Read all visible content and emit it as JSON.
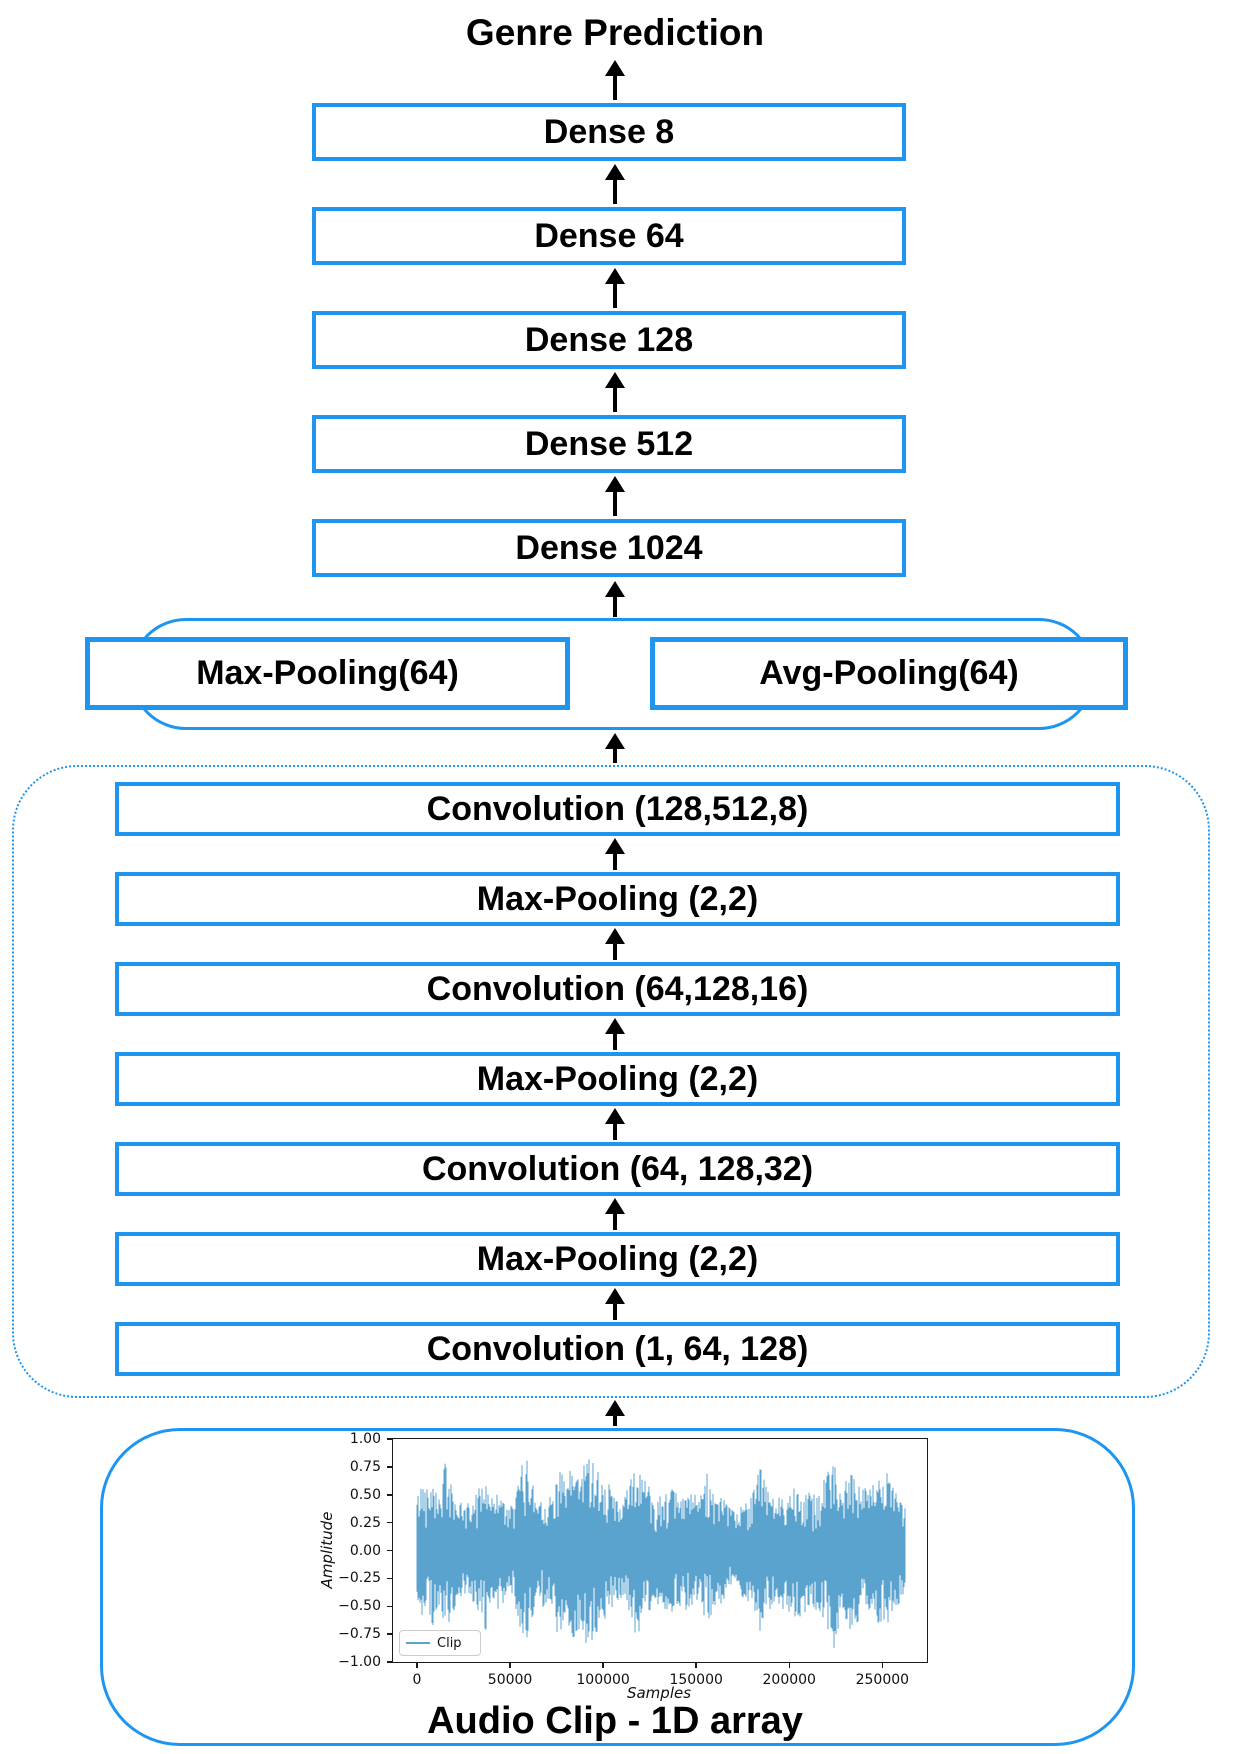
{
  "title": "Genre Prediction",
  "colors": {
    "box_border": "#1E96F0",
    "waveform": "#5BA3CF",
    "arrow": "#000000",
    "background": "#FFFFFF"
  },
  "dense_stack": {
    "items": [
      {
        "label": "Dense 8"
      },
      {
        "label": "Dense 64"
      },
      {
        "label": "Dense 128"
      },
      {
        "label": "Dense 512"
      },
      {
        "label": "Dense 1024"
      }
    ]
  },
  "pooling_group": {
    "max_label": "Max-Pooling(64)",
    "avg_label": "Avg-Pooling(64)"
  },
  "conv_stack": {
    "items": [
      {
        "label": "Convolution (128,512,8)"
      },
      {
        "label": "Max-Pooling (2,2)"
      },
      {
        "label": "Convolution (64,128,16)"
      },
      {
        "label": "Max-Pooling (2,2)"
      },
      {
        "label": "Convolution (64, 128,32)"
      },
      {
        "label": "Max-Pooling (2,2)"
      },
      {
        "label": "Convolution (1, 64, 128)"
      }
    ]
  },
  "input_group": {
    "caption": "Audio Clip - 1D array"
  },
  "chart_data": {
    "type": "line",
    "title": "",
    "xlabel": "Samples",
    "ylabel": "Amplitude",
    "legend_label": "Clip",
    "legend_position": "lower left",
    "series_color": "#5BA3CF",
    "xlim": [
      -12900,
      274000
    ],
    "ylim": [
      -1,
      1
    ],
    "xticks": [
      0,
      50000,
      100000,
      150000,
      200000,
      250000
    ],
    "xtick_labels": [
      "0",
      "50000",
      "100000",
      "150000",
      "200000",
      "250000"
    ],
    "yticks": [
      1.0,
      0.75,
      0.5,
      0.25,
      0.0,
      -0.25,
      -0.5,
      -0.75,
      -1.0
    ],
    "ytick_labels": [
      "1.00",
      "0.75",
      "0.50",
      "0.25",
      "0.00",
      "−0.25",
      "−0.50",
      "−0.75",
      "−1.00"
    ],
    "grid": false,
    "end_sample": 262000,
    "amplitude_envelope": [
      [
        0,
        0.5
      ],
      [
        3000,
        0.62
      ],
      [
        6000,
        0.58
      ],
      [
        9000,
        0.75
      ],
      [
        12000,
        0.5
      ],
      [
        15000,
        0.8
      ],
      [
        18000,
        0.62
      ],
      [
        22000,
        0.45
      ],
      [
        26000,
        0.4
      ],
      [
        30000,
        0.48
      ],
      [
        34000,
        0.6
      ],
      [
        37000,
        0.72
      ],
      [
        40000,
        0.48
      ],
      [
        44000,
        0.62
      ],
      [
        48000,
        0.38
      ],
      [
        52000,
        0.42
      ],
      [
        56000,
        0.78
      ],
      [
        60000,
        0.83
      ],
      [
        64000,
        0.5
      ],
      [
        68000,
        0.52
      ],
      [
        72000,
        0.48
      ],
      [
        76000,
        0.8
      ],
      [
        80000,
        0.58
      ],
      [
        84000,
        0.83
      ],
      [
        88000,
        0.68
      ],
      [
        92000,
        0.95
      ],
      [
        96000,
        0.78
      ],
      [
        100000,
        0.65
      ],
      [
        104000,
        0.58
      ],
      [
        108000,
        0.45
      ],
      [
        112000,
        0.5
      ],
      [
        116000,
        0.74
      ],
      [
        120000,
        0.73
      ],
      [
        124000,
        0.62
      ],
      [
        128000,
        0.48
      ],
      [
        132000,
        0.52
      ],
      [
        136000,
        0.57
      ],
      [
        140000,
        0.5
      ],
      [
        144000,
        0.54
      ],
      [
        148000,
        0.52
      ],
      [
        152000,
        0.46
      ],
      [
        156000,
        0.73
      ],
      [
        160000,
        0.52
      ],
      [
        164000,
        0.48
      ],
      [
        168000,
        0.38
      ],
      [
        172000,
        0.33
      ],
      [
        176000,
        0.48
      ],
      [
        180000,
        0.57
      ],
      [
        184000,
        0.78
      ],
      [
        188000,
        0.57
      ],
      [
        192000,
        0.47
      ],
      [
        196000,
        0.52
      ],
      [
        200000,
        0.55
      ],
      [
        204000,
        0.62
      ],
      [
        208000,
        0.57
      ],
      [
        212000,
        0.5
      ],
      [
        216000,
        0.57
      ],
      [
        220000,
        0.67
      ],
      [
        224000,
        0.92
      ],
      [
        228000,
        0.55
      ],
      [
        232000,
        0.72
      ],
      [
        236000,
        0.66
      ],
      [
        240000,
        0.62
      ],
      [
        244000,
        0.57
      ],
      [
        248000,
        0.66
      ],
      [
        252000,
        0.72
      ],
      [
        256000,
        0.58
      ],
      [
        260000,
        0.45
      ],
      [
        262000,
        0.4
      ]
    ]
  }
}
